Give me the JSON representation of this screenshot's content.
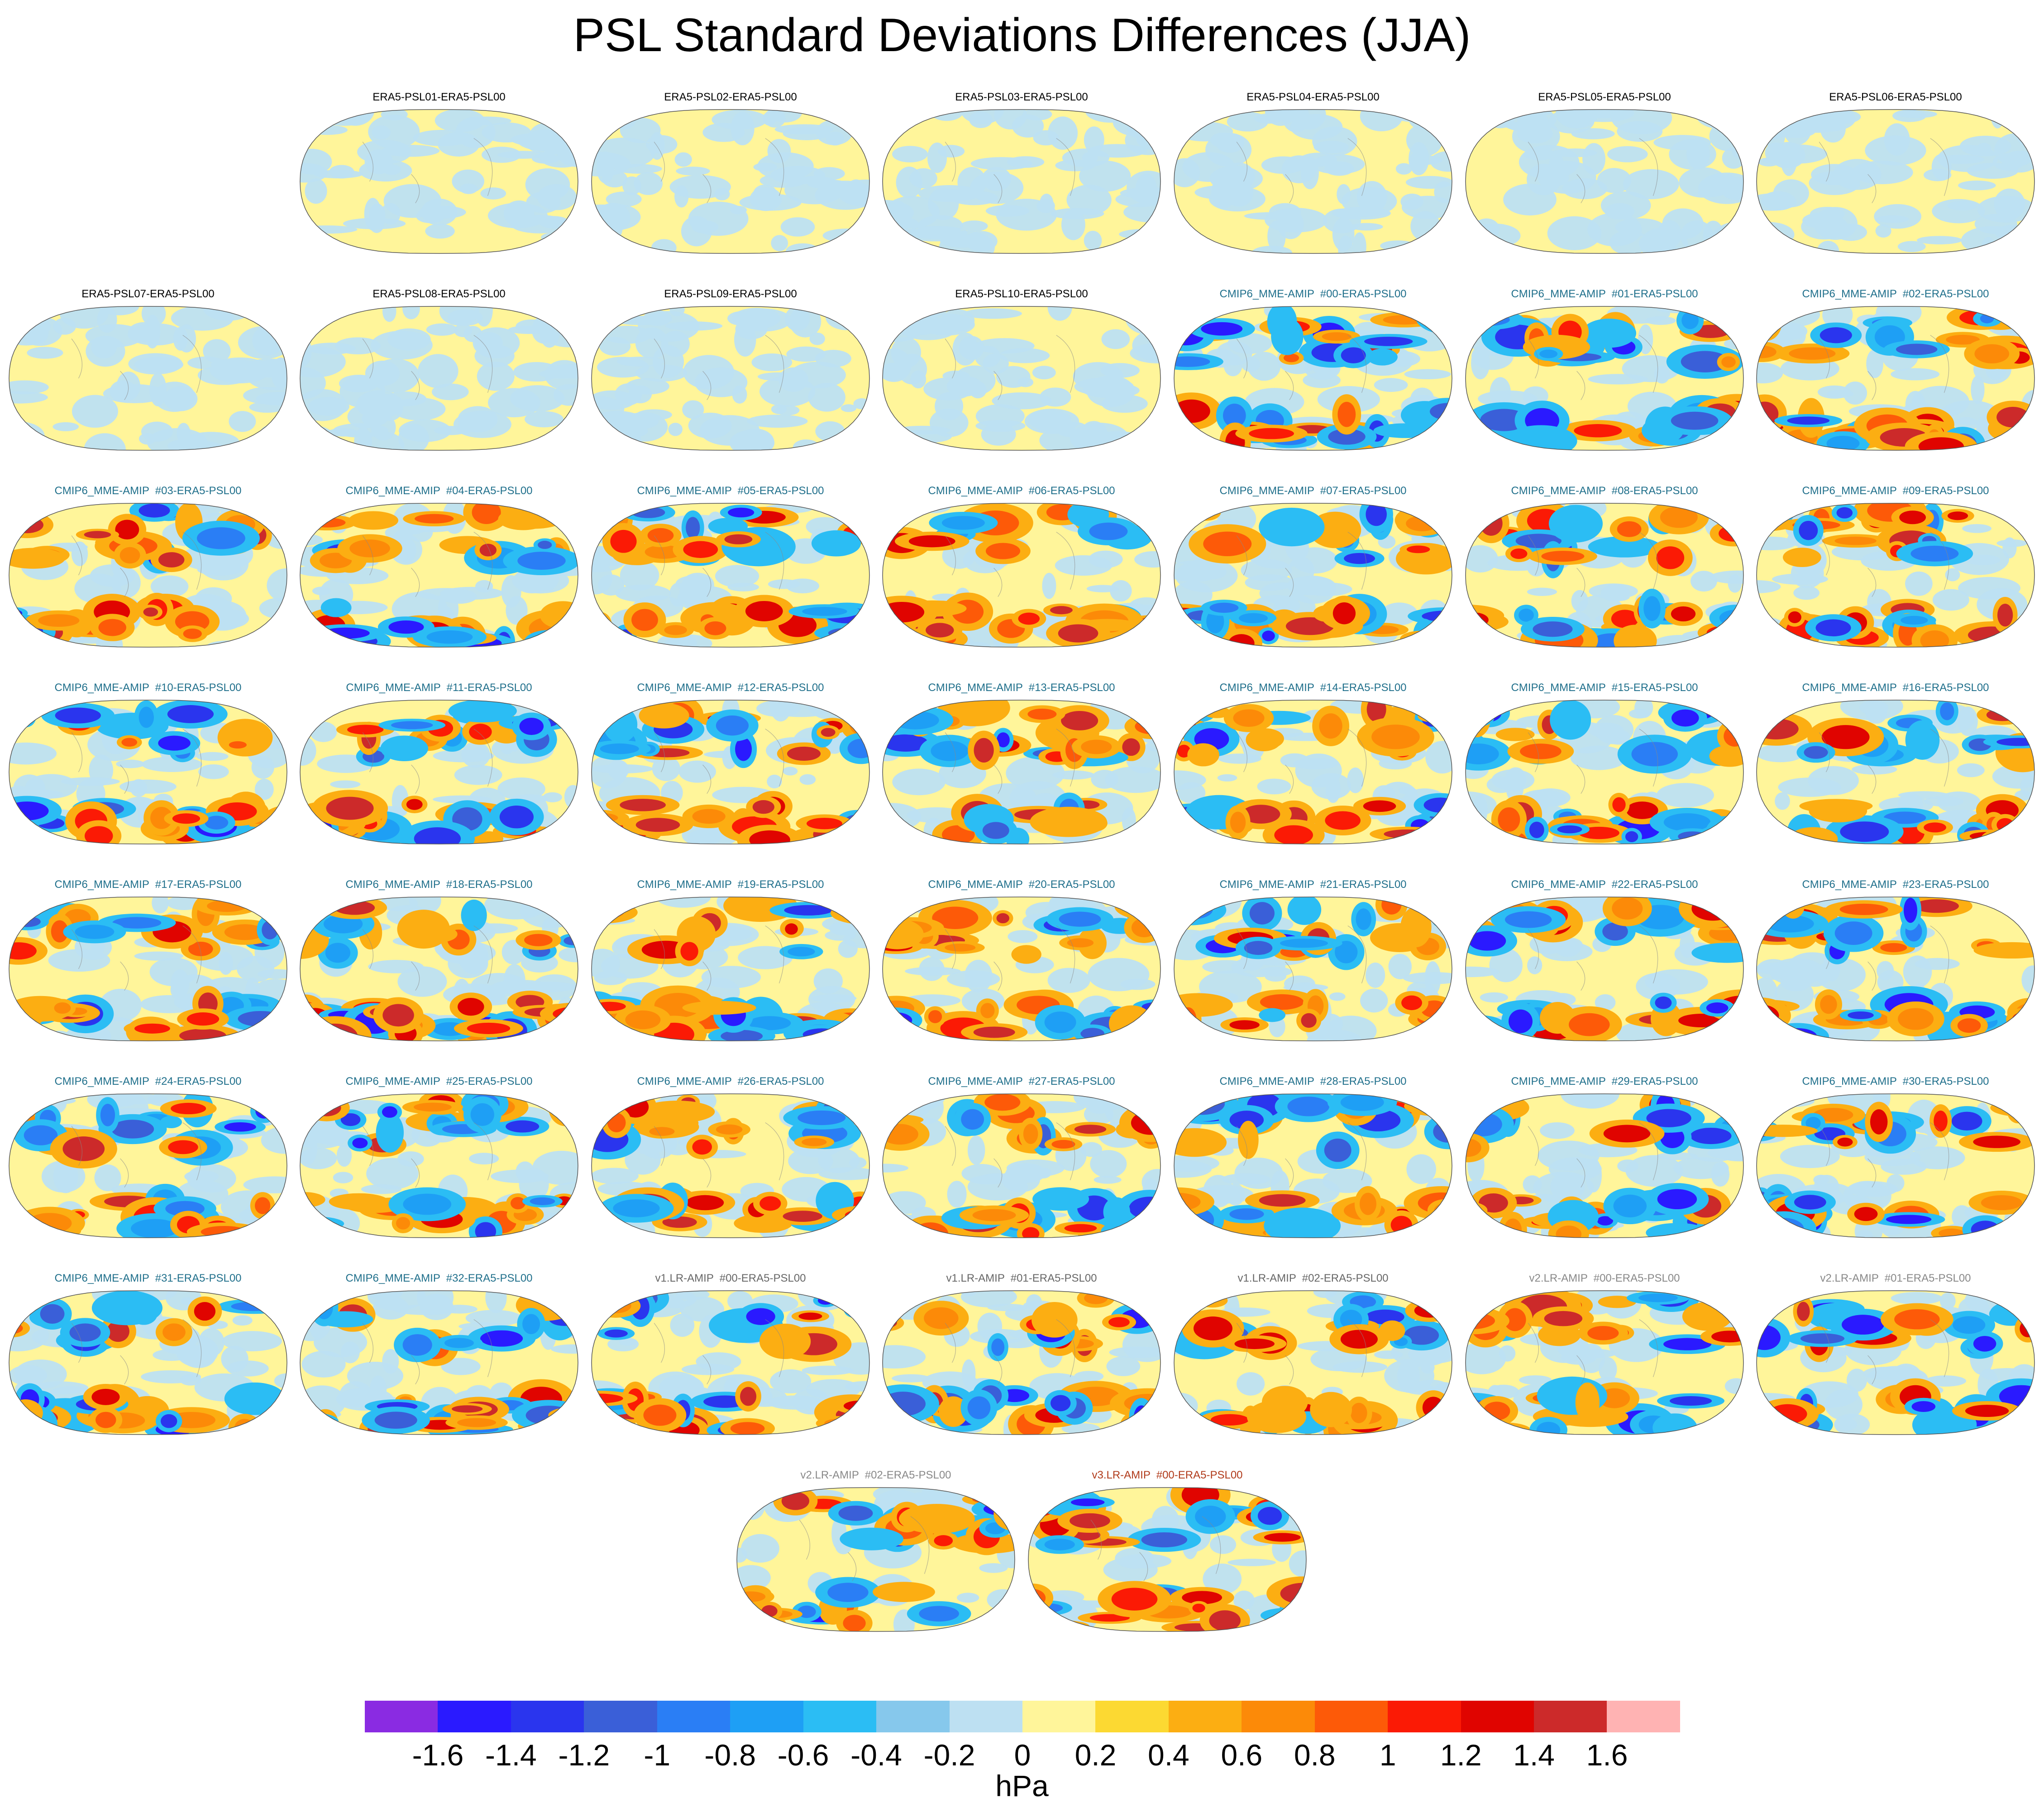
{
  "title": "PSL Standard Deviations Differences (JJA)",
  "chart_data": {
    "type": "heatmap",
    "title": "PSL Standard Deviations Differences (JJA)",
    "projection": "Robinson",
    "panels": [
      {
        "name": "ERA5-PSL01-ERA5-PSL00",
        "group": "era5"
      },
      {
        "name": "ERA5-PSL02-ERA5-PSL00",
        "group": "era5"
      },
      {
        "name": "ERA5-PSL03-ERA5-PSL00",
        "group": "era5"
      },
      {
        "name": "ERA5-PSL04-ERA5-PSL00",
        "group": "era5"
      },
      {
        "name": "ERA5-PSL05-ERA5-PSL00",
        "group": "era5"
      },
      {
        "name": "ERA5-PSL06-ERA5-PSL00",
        "group": "era5"
      },
      {
        "name": "ERA5-PSL07-ERA5-PSL00",
        "group": "era5"
      },
      {
        "name": "ERA5-PSL08-ERA5-PSL00",
        "group": "era5"
      },
      {
        "name": "ERA5-PSL09-ERA5-PSL00",
        "group": "era5"
      },
      {
        "name": "ERA5-PSL10-ERA5-PSL00",
        "group": "era5"
      },
      {
        "name": "CMIP6_MME-AMIP  #00-ERA5-PSL00",
        "group": "cmip6"
      },
      {
        "name": "CMIP6_MME-AMIP  #01-ERA5-PSL00",
        "group": "cmip6"
      },
      {
        "name": "CMIP6_MME-AMIP  #02-ERA5-PSL00",
        "group": "cmip6"
      },
      {
        "name": "CMIP6_MME-AMIP  #03-ERA5-PSL00",
        "group": "cmip6"
      },
      {
        "name": "CMIP6_MME-AMIP  #04-ERA5-PSL00",
        "group": "cmip6"
      },
      {
        "name": "CMIP6_MME-AMIP  #05-ERA5-PSL00",
        "group": "cmip6"
      },
      {
        "name": "CMIP6_MME-AMIP  #06-ERA5-PSL00",
        "group": "cmip6"
      },
      {
        "name": "CMIP6_MME-AMIP  #07-ERA5-PSL00",
        "group": "cmip6"
      },
      {
        "name": "CMIP6_MME-AMIP  #08-ERA5-PSL00",
        "group": "cmip6"
      },
      {
        "name": "CMIP6_MME-AMIP  #09-ERA5-PSL00",
        "group": "cmip6"
      },
      {
        "name": "CMIP6_MME-AMIP  #10-ERA5-PSL00",
        "group": "cmip6"
      },
      {
        "name": "CMIP6_MME-AMIP  #11-ERA5-PSL00",
        "group": "cmip6"
      },
      {
        "name": "CMIP6_MME-AMIP  #12-ERA5-PSL00",
        "group": "cmip6"
      },
      {
        "name": "CMIP6_MME-AMIP  #13-ERA5-PSL00",
        "group": "cmip6"
      },
      {
        "name": "CMIP6_MME-AMIP  #14-ERA5-PSL00",
        "group": "cmip6"
      },
      {
        "name": "CMIP6_MME-AMIP  #15-ERA5-PSL00",
        "group": "cmip6"
      },
      {
        "name": "CMIP6_MME-AMIP  #16-ERA5-PSL00",
        "group": "cmip6"
      },
      {
        "name": "CMIP6_MME-AMIP  #17-ERA5-PSL00",
        "group": "cmip6"
      },
      {
        "name": "CMIP6_MME-AMIP  #18-ERA5-PSL00",
        "group": "cmip6"
      },
      {
        "name": "CMIP6_MME-AMIP  #19-ERA5-PSL00",
        "group": "cmip6"
      },
      {
        "name": "CMIP6_MME-AMIP  #20-ERA5-PSL00",
        "group": "cmip6"
      },
      {
        "name": "CMIP6_MME-AMIP  #21-ERA5-PSL00",
        "group": "cmip6"
      },
      {
        "name": "CMIP6_MME-AMIP  #22-ERA5-PSL00",
        "group": "cmip6"
      },
      {
        "name": "CMIP6_MME-AMIP  #23-ERA5-PSL00",
        "group": "cmip6"
      },
      {
        "name": "CMIP6_MME-AMIP  #24-ERA5-PSL00",
        "group": "cmip6"
      },
      {
        "name": "CMIP6_MME-AMIP  #25-ERA5-PSL00",
        "group": "cmip6"
      },
      {
        "name": "CMIP6_MME-AMIP  #26-ERA5-PSL00",
        "group": "cmip6"
      },
      {
        "name": "CMIP6_MME-AMIP  #27-ERA5-PSL00",
        "group": "cmip6"
      },
      {
        "name": "CMIP6_MME-AMIP  #28-ERA5-PSL00",
        "group": "cmip6"
      },
      {
        "name": "CMIP6_MME-AMIP  #29-ERA5-PSL00",
        "group": "cmip6"
      },
      {
        "name": "CMIP6_MME-AMIP  #30-ERA5-PSL00",
        "group": "cmip6"
      },
      {
        "name": "CMIP6_MME-AMIP  #31-ERA5-PSL00",
        "group": "cmip6"
      },
      {
        "name": "CMIP6_MME-AMIP  #32-ERA5-PSL00",
        "group": "cmip6"
      },
      {
        "name": "v1.LR-AMIP  #00-ERA5-PSL00",
        "group": "v1"
      },
      {
        "name": "v1.LR-AMIP  #01-ERA5-PSL00",
        "group": "v1"
      },
      {
        "name": "v1.LR-AMIP  #02-ERA5-PSL00",
        "group": "v1"
      },
      {
        "name": "v2.LR-AMIP  #00-ERA5-PSL00",
        "group": "v2"
      },
      {
        "name": "v2.LR-AMIP  #01-ERA5-PSL00",
        "group": "v2"
      },
      {
        "name": "v2.LR-AMIP  #02-ERA5-PSL00",
        "group": "v2"
      },
      {
        "name": "v3.LR-AMIP  #00-ERA5-PSL00",
        "group": "v3"
      }
    ],
    "group_title_colors": {
      "era5": "#000000",
      "cmip6": "#1f6f8b",
      "v1": "#666666",
      "v2": "#888888",
      "v3": "#b03a1a"
    },
    "colorbar": {
      "levels": [
        -1.6,
        -1.4,
        -1.2,
        -1,
        -0.8,
        -0.6,
        -0.4,
        -0.2,
        0,
        0.2,
        0.4,
        0.6,
        0.8,
        1,
        1.2,
        1.4,
        1.6
      ],
      "tick_labels": [
        "-1.6",
        "-1.4",
        "-1.2",
        "-1",
        "-0.8",
        "-0.6",
        "-0.4",
        "-0.2",
        "0",
        "0.2",
        "0.4",
        "0.6",
        "0.8",
        "1",
        "1.2",
        "1.4",
        "1.6"
      ],
      "colors": [
        "#8a2be2",
        "#2a1aff",
        "#2a35ee",
        "#3a5fd8",
        "#2a7ef5",
        "#1e9ff5",
        "#2bbdf4",
        "#86c8ec",
        "#bde0f2",
        "#fff59a",
        "#fcd932",
        "#fcae12",
        "#fc8a08",
        "#fd5a08",
        "#fb1a05",
        "#e00400",
        "#cc2a2a",
        "#ffb3b3"
      ],
      "units": "hPa"
    }
  }
}
